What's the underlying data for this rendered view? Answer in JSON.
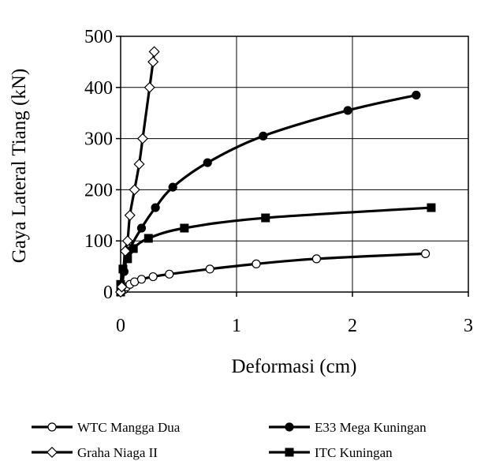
{
  "chart_data": {
    "type": "line",
    "title": "",
    "xlabel": "Deformasi (cm)",
    "ylabel": "Gaya Lateral Tiang (kN)",
    "xlim": [
      0,
      3
    ],
    "ylim": [
      0,
      500
    ],
    "x_ticks": [
      "0",
      "1",
      "2",
      "3"
    ],
    "y_ticks": [
      "0",
      "100",
      "200",
      "300",
      "400",
      "500"
    ],
    "grid": true,
    "legend_position": "bottom",
    "series": [
      {
        "name": "WTC Mangga Dua",
        "marker": "circle-open",
        "points": [
          [
            0,
            0
          ],
          [
            0.03,
            5
          ],
          [
            0.05,
            10
          ],
          [
            0.08,
            15
          ],
          [
            0.12,
            20
          ],
          [
            0.18,
            25
          ],
          [
            0.28,
            30
          ],
          [
            0.42,
            35
          ],
          [
            0.77,
            45
          ],
          [
            1.17,
            55
          ],
          [
            1.69,
            65
          ],
          [
            2.63,
            75
          ]
        ]
      },
      {
        "name": "E33 Mega Kuningan",
        "marker": "circle-filled",
        "points": [
          [
            0,
            0
          ],
          [
            0.01,
            10
          ],
          [
            0.03,
            40
          ],
          [
            0.07,
            80
          ],
          [
            0.18,
            125
          ],
          [
            0.3,
            165
          ],
          [
            0.45,
            205
          ],
          [
            0.75,
            253
          ],
          [
            1.23,
            305
          ],
          [
            1.96,
            355
          ],
          [
            2.55,
            385
          ]
        ]
      },
      {
        "name": "Graha Niaga II",
        "marker": "diamond-open",
        "points": [
          [
            0,
            0
          ],
          [
            0.01,
            10
          ],
          [
            0.04,
            80
          ],
          [
            0.06,
            100
          ],
          [
            0.08,
            150
          ],
          [
            0.12,
            200
          ],
          [
            0.16,
            250
          ],
          [
            0.19,
            300
          ],
          [
            0.25,
            400
          ],
          [
            0.28,
            450
          ],
          [
            0.29,
            470
          ]
        ]
      },
      {
        "name": "ITC Kuningan",
        "marker": "square-filled",
        "points": [
          [
            0,
            0
          ],
          [
            0,
            15
          ],
          [
            0.02,
            45
          ],
          [
            0.06,
            65
          ],
          [
            0.11,
            85
          ],
          [
            0.24,
            105
          ],
          [
            0.55,
            125
          ],
          [
            1.25,
            145
          ],
          [
            2.68,
            165
          ]
        ]
      }
    ]
  }
}
